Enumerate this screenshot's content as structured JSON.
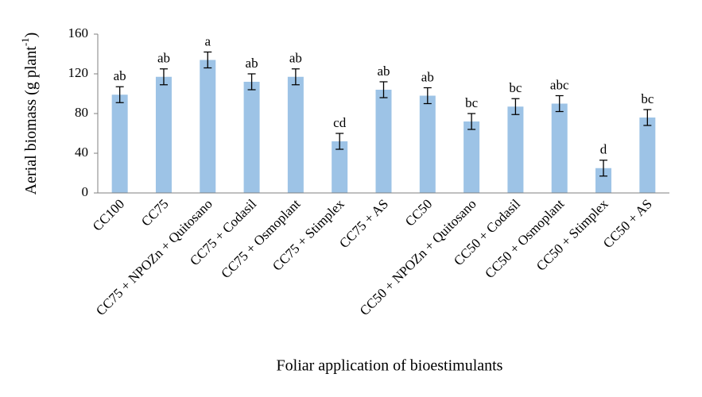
{
  "chart_data": {
    "type": "bar",
    "y_label": [
      "Aerial biomass (g plant",
      "-1",
      ")"
    ],
    "x_label": "Foliar application of bioestimulants",
    "categories": [
      "CC100",
      "CC75",
      "CC75 + NPOZn + Quitosano",
      "CC75 + Codasil",
      "CC75 + Osmoplant",
      "CC75 + Stimplex",
      "CC75 + AS",
      "CC50",
      "CC50 + NPOZn + Quitosano",
      "CC50 + Codasil",
      "CC50 + Osmoplant",
      "CC50 + Stimplex",
      "CC50 + AS"
    ],
    "values": [
      99,
      117,
      134,
      112,
      117,
      52,
      104,
      98,
      72,
      87,
      90,
      25,
      76
    ],
    "errors": [
      8,
      8,
      8,
      8,
      8,
      8,
      8,
      8,
      8,
      8,
      8,
      8,
      8
    ],
    "annotations": [
      "ab",
      "ab",
      "a",
      "ab",
      "ab",
      "cd",
      "ab",
      "ab",
      "bc",
      "bc",
      "abc",
      "d",
      "bc"
    ],
    "color": "#9dc3e6",
    "ylim": [
      0,
      160
    ],
    "yticks": [
      0,
      40,
      80,
      120,
      160
    ],
    "grid": false
  }
}
